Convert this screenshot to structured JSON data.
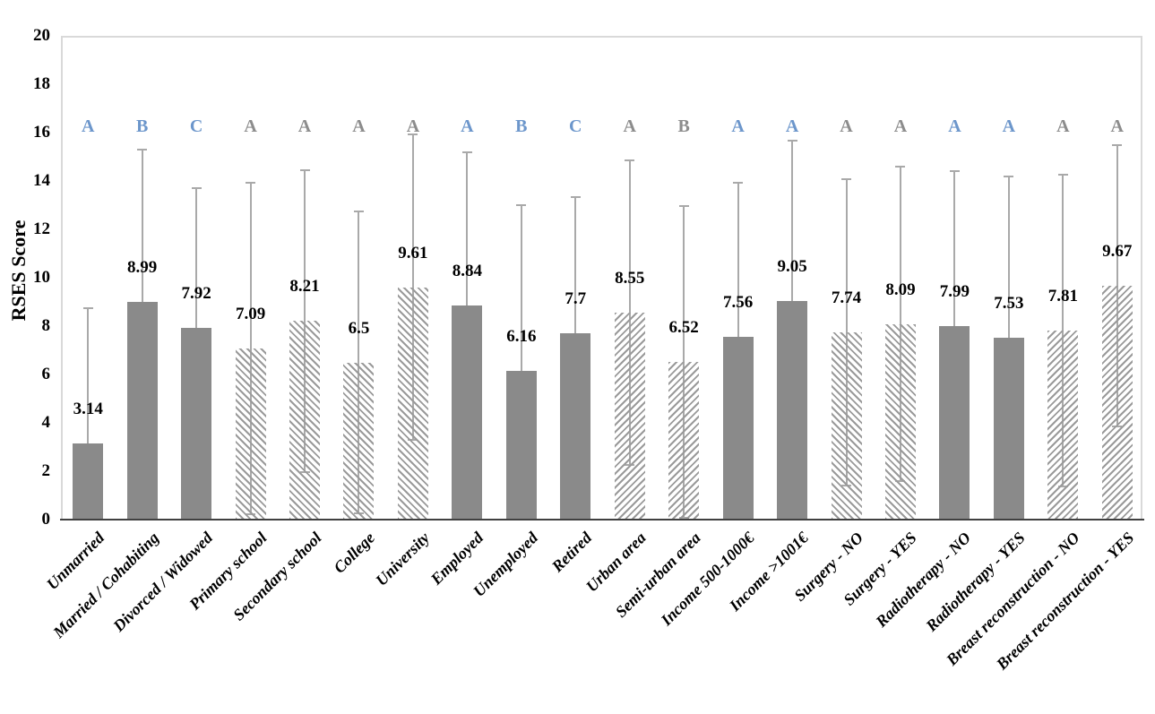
{
  "chart_data": {
    "type": "bar",
    "title": "",
    "ylabel": "RSES Score",
    "xlabel": "",
    "ylim": [
      0,
      20
    ],
    "yticks": [
      "0",
      "2",
      "4",
      "6",
      "8",
      "10",
      "12",
      "14",
      "16",
      "18",
      "20"
    ],
    "grid": false,
    "legend": "none",
    "error_bars": "symmetric ±SD whiskers with end caps, drawn behind bars",
    "categories": [
      "Unmarried",
      "Married / Cohabiting",
      "Divorced / Widowed",
      "Primary school",
      "Secondary school",
      "College",
      "University",
      "Employed",
      "Unemployed",
      "Retired",
      "Urban area",
      "Semi-urban area",
      "Income 500-1000€",
      "Income >1001€",
      "Surgery - NO",
      "Surgery - YES",
      "Radiotherapy - NO",
      "Radiotherapy - YES",
      "Breast reconstruction - NO",
      "Breast reconstruction - YES"
    ],
    "values": [
      3.14,
      8.99,
      7.92,
      7.09,
      8.21,
      6.5,
      9.61,
      8.84,
      6.16,
      7.7,
      8.55,
      6.52,
      7.56,
      9.05,
      7.74,
      8.09,
      7.99,
      7.53,
      7.81,
      9.67
    ],
    "value_labels": [
      "3.14",
      "8.99",
      "7.92",
      "7.09",
      "8.21",
      "6.5",
      "9.61",
      "8.84",
      "6.16",
      "7.7",
      "8.55",
      "6.52",
      "7.56",
      "9.05",
      "7.74",
      "8.09",
      "7.99",
      "7.53",
      "7.81",
      "9.67"
    ],
    "error": [
      5.6,
      6.3,
      5.8,
      6.85,
      6.25,
      6.25,
      6.3,
      6.35,
      6.85,
      5.65,
      6.3,
      6.45,
      6.35,
      6.6,
      6.35,
      6.5,
      6.4,
      6.65,
      6.45,
      5.8
    ],
    "letters": [
      "A",
      "B",
      "C",
      "A",
      "A",
      "A",
      "A",
      "A",
      "B",
      "C",
      "A",
      "B",
      "A",
      "A",
      "A",
      "A",
      "A",
      "A",
      "A",
      "A"
    ],
    "letter_colors": [
      "blue",
      "blue",
      "blue",
      "gray",
      "gray",
      "gray",
      "gray",
      "blue",
      "blue",
      "blue",
      "gray",
      "gray",
      "blue",
      "blue",
      "gray",
      "gray",
      "blue",
      "blue",
      "gray",
      "gray"
    ],
    "fill_styles": [
      "solid",
      "solid",
      "solid",
      "hatch_back",
      "hatch_back",
      "hatch_back",
      "hatch_back",
      "solid",
      "solid",
      "solid",
      "hatch_fwd",
      "hatch_fwd",
      "solid",
      "solid",
      "hatch_back",
      "hatch_back",
      "solid",
      "solid",
      "hatch_fwd",
      "hatch_fwd"
    ],
    "colors": {
      "bar_solid": "#8a8a8a",
      "hatch_line": "#9a9a9a",
      "error_bar": "#a9a9a9",
      "letter_blue": "#6c96cb",
      "letter_gray": "#8c8c8c",
      "axis_line": "#404040",
      "plot_border": "#d9d9d9",
      "label_text": "#000000"
    }
  }
}
